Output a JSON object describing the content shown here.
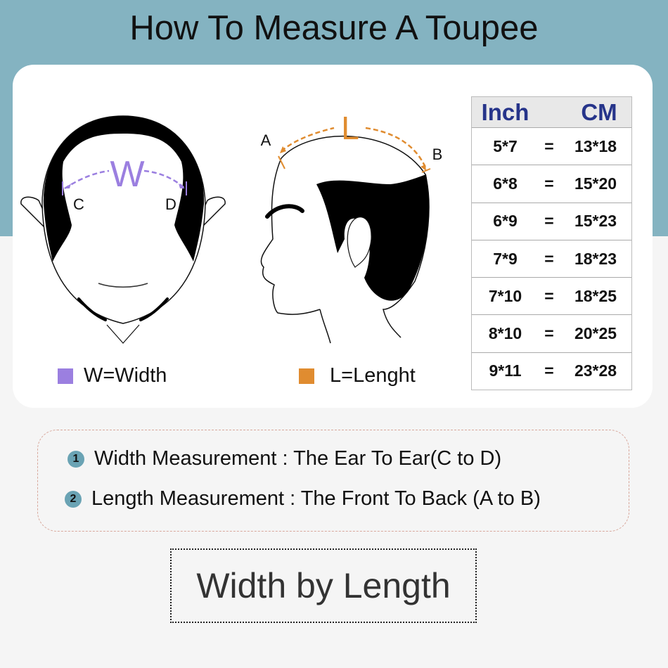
{
  "title": "How To Measure A Toupee",
  "diagram": {
    "width_letter": "W",
    "point_c": "C",
    "point_d": "D",
    "length_letter": "L",
    "point_a": "A",
    "point_b": "B"
  },
  "legend": [
    {
      "label": "W=Width",
      "color": "#9b7fe0"
    },
    {
      "label": "L=Lenght",
      "color": "#e08c30"
    }
  ],
  "size_table": {
    "headers": [
      "Inch",
      "CM"
    ],
    "equals": "=",
    "rows": [
      {
        "inch": "5*7",
        "cm": "13*18"
      },
      {
        "inch": "6*8",
        "cm": "15*20"
      },
      {
        "inch": "6*9",
        "cm": "15*23"
      },
      {
        "inch": "7*9",
        "cm": "18*23"
      },
      {
        "inch": "7*10",
        "cm": "18*25"
      },
      {
        "inch": "8*10",
        "cm": "20*25"
      },
      {
        "inch": "9*11",
        "cm": "23*28"
      }
    ]
  },
  "notes": [
    {
      "num": "1",
      "text": "Width Measurement : The Ear To Ear(C to D)"
    },
    {
      "num": "2",
      "text": "Length Measurement : The Front To Back (A to B)"
    }
  ],
  "summary": "Width by Length",
  "colors": {
    "band": "#84b3c1",
    "header_text": "#26348a",
    "width": "#9b7fe0",
    "length": "#e08c30"
  }
}
